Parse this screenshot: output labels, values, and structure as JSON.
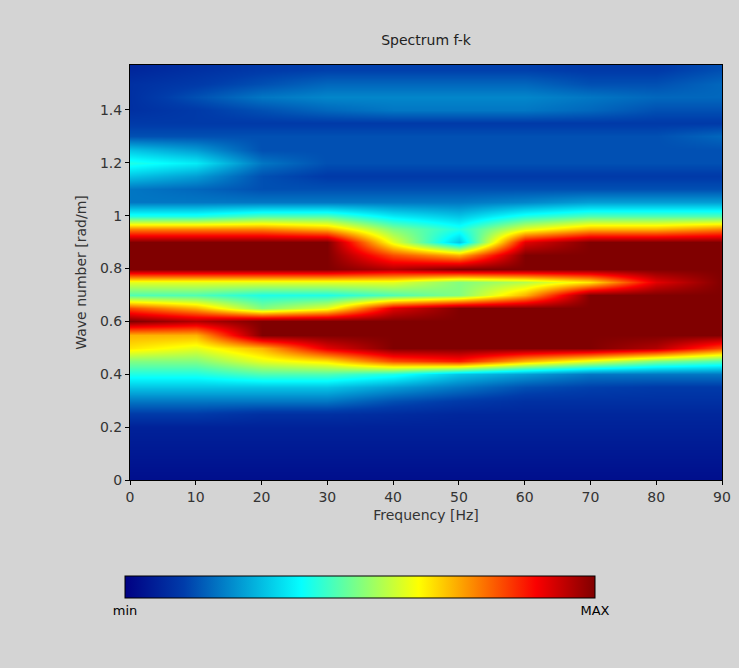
{
  "chart_data": {
    "type": "heatmap",
    "title": "Spectrum f-k",
    "x_label": "Frequency [Hz]",
    "y_label": "Wave number [rad/m]",
    "x": [
      0,
      10,
      20,
      30,
      40,
      50,
      60,
      70,
      80,
      90
    ],
    "y": [
      0,
      0.05,
      0.1,
      0.15,
      0.2,
      0.25,
      0.3,
      0.35,
      0.4,
      0.45,
      0.5,
      0.55,
      0.6,
      0.65,
      0.7,
      0.75,
      0.8,
      0.85,
      0.9,
      0.95,
      1,
      1.05,
      1.1,
      1.15,
      1.2,
      1.25,
      1.3,
      1.35,
      1.4,
      1.45,
      1.5,
      1.55
    ],
    "z": [
      [
        0.3,
        0.3,
        0.3,
        0.3,
        0.3,
        0.3,
        0.3,
        0.3,
        0.3,
        0.3
      ],
      [
        0.4,
        0.4,
        0.4,
        0.4,
        0.4,
        0.4,
        0.4,
        0.4,
        0.4,
        0.4
      ],
      [
        0.5,
        0.5,
        0.5,
        0.5,
        0.5,
        0.5,
        0.5,
        0.5,
        0.5,
        0.5
      ],
      [
        0.6,
        0.6,
        0.6,
        0.6,
        0.6,
        0.6,
        0.6,
        0.6,
        0.6,
        0.6
      ],
      [
        0.7,
        0.7,
        0.7,
        0.7,
        0.7,
        0.7,
        0.7,
        0.7,
        0.7,
        0.7
      ],
      [
        1.2,
        1.2,
        1,
        1,
        0.9,
        0.8,
        0.8,
        0.8,
        0.8,
        0.8
      ],
      [
        2,
        2,
        2,
        2,
        1.5,
        1.2,
        1,
        1,
        1,
        1
      ],
      [
        3,
        3,
        3,
        3,
        2.5,
        2,
        1.5,
        1.3,
        1.2,
        1.2
      ],
      [
        4,
        4,
        4.5,
        4.5,
        4,
        3,
        2.5,
        2,
        2,
        2
      ],
      [
        5,
        5,
        6,
        6.5,
        8,
        8.5,
        7,
        6,
        5,
        4.5
      ],
      [
        6.5,
        6,
        7,
        9,
        10,
        10,
        10,
        10,
        9.5,
        8
      ],
      [
        7,
        7,
        10,
        10,
        10,
        10,
        10,
        10,
        10,
        10
      ],
      [
        10,
        9.5,
        10,
        10,
        10,
        10,
        10,
        10,
        10,
        10
      ],
      [
        8,
        7,
        5,
        6,
        9,
        10,
        10,
        10,
        10,
        10
      ],
      [
        4.5,
        4.5,
        4,
        4,
        4.5,
        5,
        7,
        10,
        10,
        10
      ],
      [
        6,
        6,
        6,
        6,
        6,
        5,
        5.5,
        6.5,
        9,
        10
      ],
      [
        10,
        10,
        10,
        10,
        9.5,
        10,
        10,
        10,
        10,
        10
      ],
      [
        10,
        10,
        10,
        10,
        8,
        7,
        10,
        10,
        10,
        10
      ],
      [
        10,
        10,
        10,
        10,
        6,
        3,
        9,
        10,
        10,
        10
      ],
      [
        7.5,
        7.5,
        7.5,
        7,
        5,
        4,
        6,
        7,
        7,
        7.5
      ],
      [
        4,
        4,
        4.5,
        4.5,
        3.5,
        3,
        4,
        4.5,
        4.5,
        4.5
      ],
      [
        2,
        2,
        2,
        2,
        2,
        2,
        2.2,
        2.5,
        2.5,
        2.5
      ],
      [
        2,
        1.8,
        1.5,
        1.5,
        1.5,
        1.5,
        1.5,
        1.5,
        1.5,
        1.5
      ],
      [
        3,
        2.5,
        1.5,
        1.2,
        1.2,
        1.2,
        1.2,
        1.2,
        1.2,
        1.2
      ],
      [
        4,
        3.5,
        2,
        1.5,
        1.5,
        1.5,
        1.5,
        1.5,
        1.5,
        1.5
      ],
      [
        3,
        2.5,
        1.5,
        1.5,
        1.5,
        1.5,
        1.5,
        1.5,
        1.5,
        1.5
      ],
      [
        1.5,
        1.5,
        1.5,
        1.5,
        1.5,
        1.5,
        1.5,
        1.5,
        1.5,
        1.8
      ],
      [
        1.2,
        1.2,
        1.2,
        1.2,
        1.2,
        1.2,
        1.2,
        1.2,
        1.2,
        1.2
      ],
      [
        1,
        1.2,
        1.5,
        1.8,
        2,
        2,
        2,
        1.8,
        1.5,
        1.5
      ],
      [
        1,
        1.5,
        2,
        2.2,
        2.2,
        2.2,
        2.2,
        2,
        1.8,
        1.8
      ],
      [
        1,
        1.2,
        1.5,
        1.8,
        1.8,
        1.8,
        1.8,
        1.5,
        1.5,
        1.8
      ],
      [
        0.8,
        1,
        1.2,
        1.3,
        1.3,
        1.3,
        1.3,
        1.2,
        1.2,
        1.5
      ]
    ],
    "xlim": [
      0,
      90
    ],
    "xticks": [
      0,
      10,
      20,
      30,
      40,
      50,
      60,
      70,
      80,
      90
    ],
    "ylim": [
      0,
      1.57
    ],
    "yticks": [
      0,
      0.2,
      0.4,
      0.6,
      0.8,
      1,
      1.2,
      1.4
    ],
    "colorbar": {
      "range": [
        0,
        10
      ],
      "ticks": [
        {
          "value": 0,
          "label": "min"
        },
        {
          "value": 10,
          "label": "MAX"
        }
      ]
    }
  }
}
